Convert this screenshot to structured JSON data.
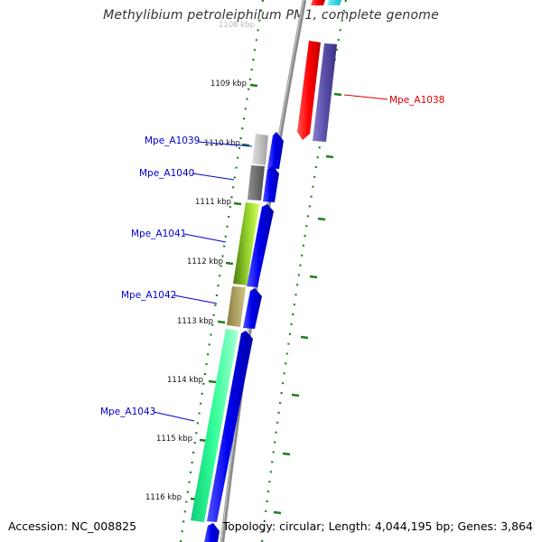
{
  "title": "Methylibium petroleiphilum PM1, complete genome",
  "footer": {
    "accession": "Accession: NC_008825",
    "summary": "Topology: circular; Length: 4,044,195 bp; Genes: 3,864"
  },
  "colors": {
    "backbone": "#8a8a8a",
    "tick": "#1e7f1e",
    "forward_gene": "#0000ee",
    "label_blue": "#0000cc",
    "label_red": "#dd0000"
  },
  "scale": {
    "unit": "kbp",
    "ticks": [
      "1108 kbp",
      "1109 kbp",
      "1110 kbp",
      "1111 kbp",
      "1112 kbp",
      "1113 kbp",
      "1114 kbp",
      "1115 kbp",
      "1116 kbp"
    ]
  },
  "genes": [
    {
      "label": "Mpe_A1038",
      "color": "#ff0000"
    },
    {
      "label": "Mpe_A1039",
      "color": "#c0c0c0"
    },
    {
      "label": "Mpe_A1040",
      "color": "#6e6e6e"
    },
    {
      "label": "Mpe_A1041",
      "color": "#7cc22a"
    },
    {
      "label": "Mpe_A1042",
      "color": "#b0a25e"
    },
    {
      "label": "Mpe_A1043",
      "color": "#22ee88"
    }
  ]
}
